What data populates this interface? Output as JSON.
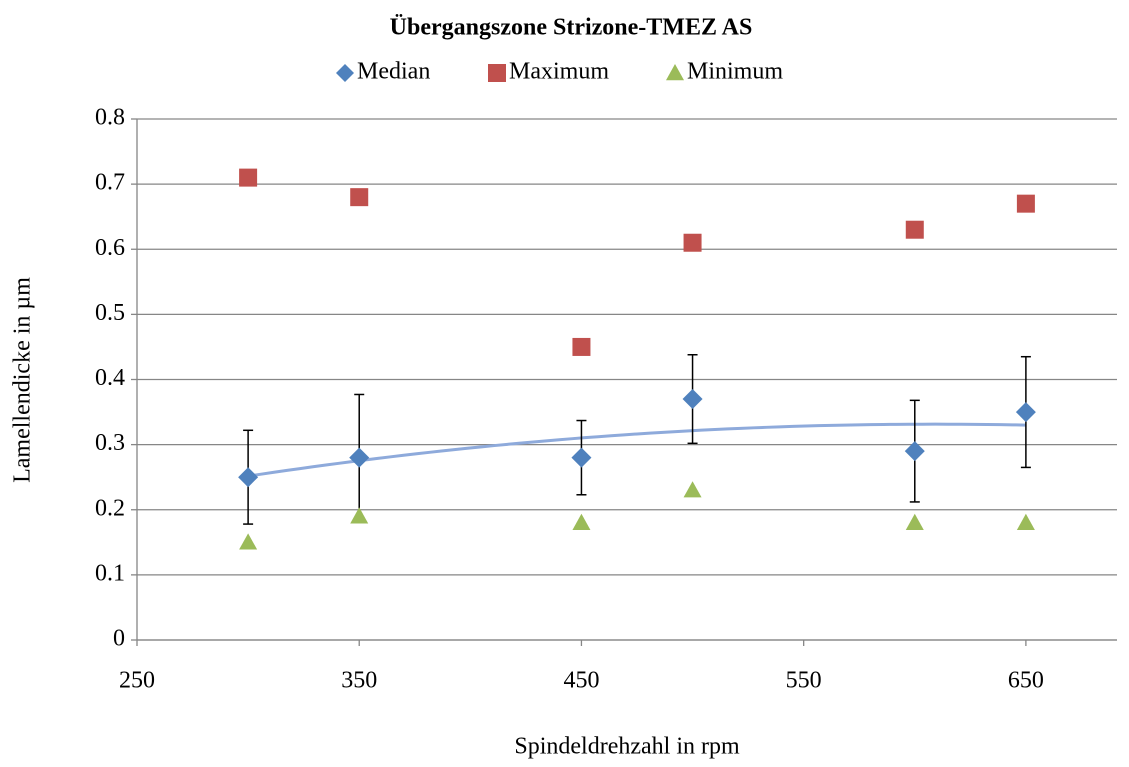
{
  "chart_data": {
    "type": "scatter",
    "title": "Übergangszone Strizone-TMEZ AS",
    "xlabel": "Spindeldrehzahl in rpm",
    "ylabel": "Lamellendicke in µm",
    "xlim": [
      250,
      691
    ],
    "xticks": [
      250,
      350,
      450,
      550,
      650
    ],
    "ylim": [
      0,
      0.8
    ],
    "yticks": [
      0,
      0.1,
      0.2,
      0.3,
      0.4,
      0.5,
      0.6,
      0.7,
      0.8
    ],
    "grid": true,
    "legend": "top",
    "trendline": {
      "series": 0,
      "type": "polynomial",
      "order": 2,
      "color": "#8eaadb"
    },
    "series": [
      {
        "name": "Median",
        "color": "#4f81bd",
        "marker": "diamond",
        "x": [
          300,
          350,
          450,
          500,
          600,
          650
        ],
        "values": [
          0.25,
          0.28,
          0.28,
          0.37,
          0.29,
          0.35
        ],
        "errors": [
          0.072,
          0.097,
          0.057,
          0.068,
          0.078,
          0.085
        ]
      },
      {
        "name": "Maximum",
        "color": "#c0504d",
        "marker": "square",
        "x": [
          300,
          350,
          450,
          500,
          600,
          650
        ],
        "values": [
          0.71,
          0.68,
          0.45,
          0.61,
          0.63,
          0.67
        ]
      },
      {
        "name": "Minimum",
        "color": "#9bbb59",
        "marker": "triangle",
        "x": [
          300,
          350,
          450,
          500,
          600,
          650
        ],
        "values": [
          0.15,
          0.19,
          0.18,
          0.23,
          0.18,
          0.18
        ]
      }
    ]
  }
}
